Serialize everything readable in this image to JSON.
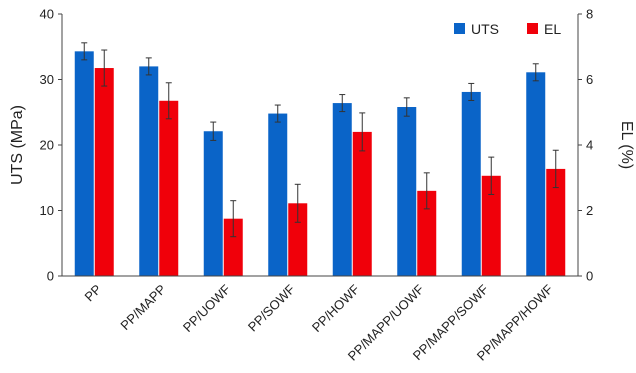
{
  "chart_data": {
    "type": "bar",
    "categories": [
      "PP",
      "PP/MAPP",
      "PP/UOWF",
      "PP/SOWF",
      "PP/HOWF",
      "PP/MAPP/UOWF",
      "PP/MAPP/SOWF",
      "PP/MAPP/HOWF"
    ],
    "series": [
      {
        "name": "UTS",
        "axis": "left",
        "color": "#0a64c8",
        "values": [
          34.3,
          32.0,
          22.1,
          24.8,
          26.4,
          25.8,
          28.1,
          31.1
        ],
        "errors": [
          1.3,
          1.3,
          1.4,
          1.3,
          1.3,
          1.4,
          1.3,
          1.3
        ]
      },
      {
        "name": "EL",
        "axis": "right",
        "color": "#f0000a",
        "values": [
          6.35,
          5.35,
          1.75,
          2.22,
          4.4,
          2.6,
          3.06,
          3.27
        ],
        "errors": [
          0.55,
          0.55,
          0.55,
          0.58,
          0.58,
          0.55,
          0.57,
          0.57
        ]
      }
    ],
    "ylabel": "UTS (MPa)",
    "y2label": "EL (%)",
    "ylim": [
      0,
      40
    ],
    "y2lim": [
      0,
      8
    ],
    "yticks": [
      "0",
      "10",
      "20",
      "30",
      "40"
    ],
    "y2ticks": [
      "0",
      "2",
      "4",
      "6",
      "8"
    ],
    "grid": false,
    "legend": "top-right"
  }
}
